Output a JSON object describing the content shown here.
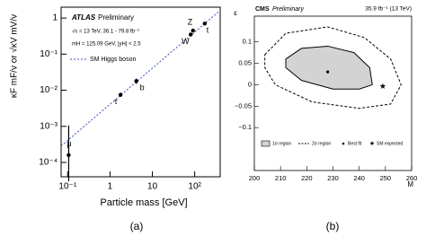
{
  "chart_data": [
    {
      "type": "scatter",
      "annotations": [
        "ATLAS",
        "Preliminary",
        "√s = 13 TeV, 36.1 - 79.8 fb⁻¹",
        "mH = 125.09 GeV, |yH| < 2.5"
      ],
      "xlabel": "Particle mass [GeV]",
      "ylabel": "κF mF/v or √κV mV/v",
      "caption": "(a)",
      "xscale": "log",
      "yscale": "log",
      "xlim": [
        0.07,
        400
      ],
      "ylim": [
        4e-05,
        2
      ],
      "xticks": [
        {
          "value": 0.1,
          "label": "10⁻¹"
        },
        1,
        10,
        {
          "value": 100,
          "label": "10²"
        }
      ],
      "yticks": [
        {
          "value": 0.0001,
          "label": "10⁻⁴"
        },
        {
          "value": 0.001,
          "label": "10⁻³"
        },
        {
          "value": 0.01,
          "label": "10⁻²"
        },
        {
          "value": 0.1,
          "label": "10⁻¹"
        },
        1
      ],
      "color": "#000000",
      "x": [
        0.1057,
        1.777,
        4.18,
        80.4,
        91.19,
        172.5
      ],
      "values": [
        0.00016,
        0.0075,
        0.018,
        0.35,
        0.45,
        0.7
      ],
      "labels": [
        "μ",
        "τ",
        "b",
        "W",
        "Z",
        "t"
      ],
      "yerr_low": [
        0.00013,
        0.001,
        0.003,
        0.02,
        0.03,
        0.06
      ],
      "yerr_high": [
        0.0009,
        0.001,
        0.003,
        0.02,
        0.03,
        0.06
      ],
      "series": [
        {
          "name": "SM Higgs boson",
          "color": "#3a4fbf",
          "x": [
            0.07,
            400
          ],
          "values": [
            0.000285,
            1.63
          ]
        }
      ]
    },
    {
      "type": "contour",
      "title": "CMS",
      "subtitle": "Preliminary",
      "note": "35.9 fb⁻¹ (13 TeV)",
      "xlabel": "M",
      "ylabel": "ε",
      "caption": "(b)",
      "xlim": [
        200,
        260
      ],
      "ylim": [
        -0.2,
        0.16
      ],
      "xticks": [
        200,
        210,
        220,
        230,
        240,
        250,
        260
      ],
      "yticks": [
        {
          "value": -0.1,
          "label": "−0.1"
        },
        {
          "value": -0.05,
          "label": "−0.05"
        },
        0,
        0.05,
        0.1
      ],
      "series": [
        {
          "name": "1σ region",
          "color": "#d3d3d3",
          "x": [
            212,
            218,
            228,
            238,
            244,
            245,
            240,
            230,
            218,
            212
          ],
          "values": [
            0.06,
            0.085,
            0.09,
            0.075,
            0.04,
            0.0,
            -0.01,
            -0.01,
            0.01,
            0.04
          ]
        },
        {
          "name": "2σ region",
          "color": "#000000",
          "x": [
            204,
            212,
            228,
            242,
            252,
            256,
            252,
            240,
            222,
            208,
            204
          ],
          "values": [
            0.07,
            0.12,
            0.135,
            0.11,
            0.06,
            0.0,
            -0.045,
            -0.055,
            -0.04,
            0.0,
            0.04
          ]
        }
      ],
      "points": [
        {
          "name": "Best fit",
          "x": 228,
          "y": 0.03
        },
        {
          "name": "SM expected",
          "x": 249,
          "y": -0.005
        }
      ]
    }
  ]
}
